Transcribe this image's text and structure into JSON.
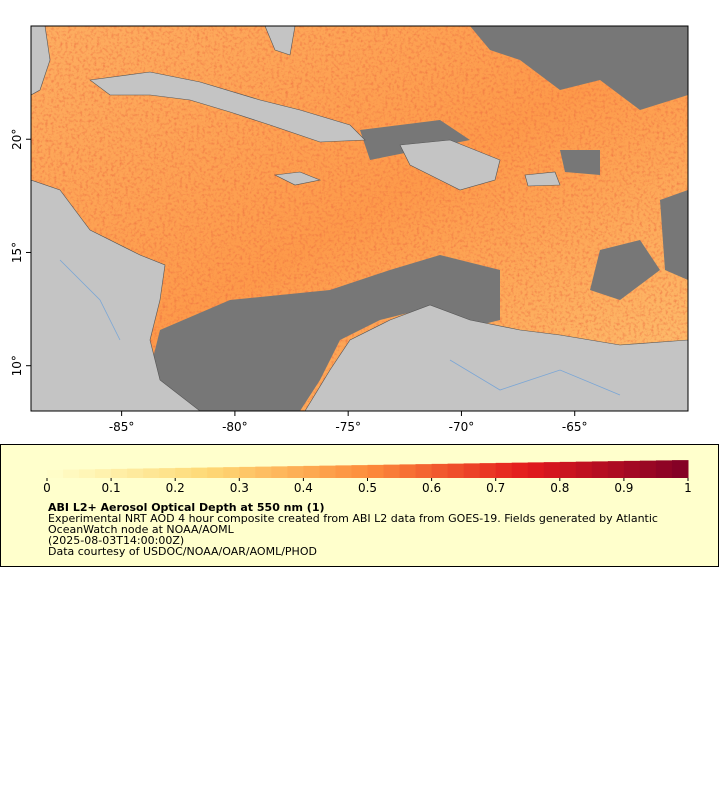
{
  "map": {
    "xlim": [
      -89,
      -60
    ],
    "ylim": [
      8,
      25
    ],
    "xticks": [
      {
        "value": -85,
        "label": "-85°"
      },
      {
        "value": -80,
        "label": "-80°"
      },
      {
        "value": -75,
        "label": "-75°"
      },
      {
        "value": -70,
        "label": "-70°"
      },
      {
        "value": -65,
        "label": "-65°"
      }
    ],
    "yticks": [
      {
        "value": 10,
        "label": "10°"
      },
      {
        "value": 15,
        "label": "15°"
      },
      {
        "value": 20,
        "label": "20°"
      }
    ]
  },
  "legend": {
    "colorbar": {
      "range": [
        0,
        1
      ],
      "ticks": [
        0,
        0.1,
        0.2,
        0.3,
        0.4,
        0.5,
        0.6,
        0.7,
        0.8,
        0.9,
        1
      ]
    },
    "title": "ABI L2+ Aerosol Optical Depth at 550 nm (1)",
    "lines": [
      "Experimental NRT AOD 4 hour composite created from ABI L2 data from GOES-19. Fields generated by Atlantic",
      "OceanWatch node at NOAA/AOML",
      "(2025-08-03T14:00:00Z)",
      "Data courtesy of USDOC/NOAA/OAR/AOML/PHOD"
    ]
  }
}
